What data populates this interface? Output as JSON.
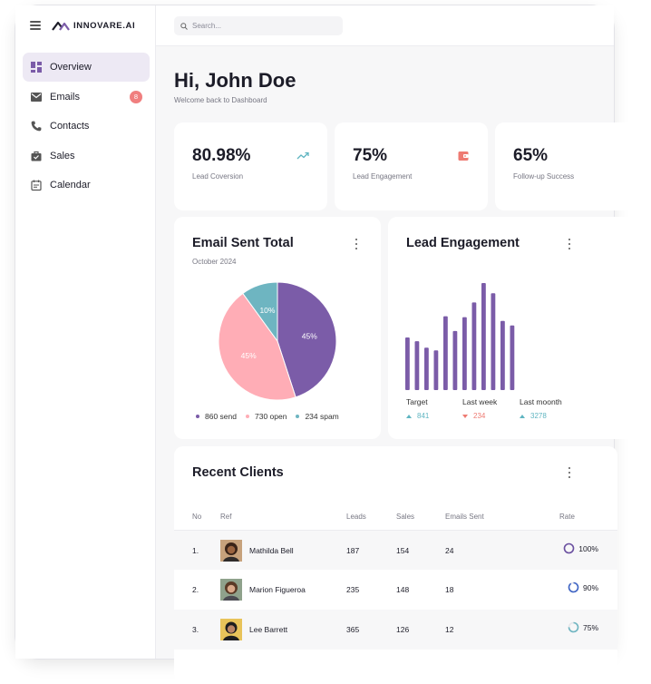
{
  "brand": {
    "name": "INNOVARE.AI",
    "logo_icon": "mountain-logo-icon"
  },
  "sidebar": {
    "items": [
      {
        "label": "Overview",
        "icon": "dashboard-grid-icon",
        "active": true
      },
      {
        "label": "Emails",
        "icon": "mail-icon",
        "badge": "8"
      },
      {
        "label": "Contacts",
        "icon": "phone-icon"
      },
      {
        "label": "Sales",
        "icon": "shopping-bag-icon"
      },
      {
        "label": "Calendar",
        "icon": "calendar-icon"
      }
    ]
  },
  "search": {
    "placeholder": "Search..."
  },
  "header": {
    "greeting": "Hi, John Doe",
    "subtitle": "Welcome back to Dashboard"
  },
  "stats": [
    {
      "value": "80.98%",
      "label": "Lead Coversion",
      "icon": "trending-up-icon",
      "icon_color": "#5fb5c1"
    },
    {
      "value": "75%",
      "label": "Lead Engagement",
      "icon": "wallet-icon",
      "icon_color": "#ee7a72"
    },
    {
      "value": "65%",
      "label": "Follow-up Success",
      "icon": ""
    }
  ],
  "email_card": {
    "title": "Email Sent Total",
    "subtitle": "October 2024",
    "legend": [
      {
        "label": "860 send",
        "color": "#7b5ca8"
      },
      {
        "label": "730 open",
        "color": "#ffadb6"
      },
      {
        "label": "234 spam",
        "color": "#6eb5c1"
      }
    ]
  },
  "engagement_card": {
    "title": "Lead Engagement",
    "stats": [
      {
        "label": "Target",
        "value": "841",
        "trend": "up"
      },
      {
        "label": "Last week",
        "value": "234",
        "trend": "down"
      },
      {
        "label": "Last moonth",
        "value": "3278",
        "trend": "up"
      }
    ]
  },
  "clients": {
    "title": "Recent Clients",
    "columns": {
      "no": "No",
      "ref": "Ref",
      "leads": "Leads",
      "sales": "Sales",
      "emails": "Emails Sent",
      "rate": "Rate"
    },
    "rows": [
      {
        "no": "1.",
        "name": "Mathilda Bell",
        "leads": "187",
        "sales": "154",
        "emails": "24",
        "rate": "100%",
        "rate_value": 1.0
      },
      {
        "no": "2.",
        "name": "Marion Figueroa",
        "leads": "235",
        "sales": "148",
        "emails": "18",
        "rate": "90%",
        "rate_value": 0.9
      },
      {
        "no": "3.",
        "name": "Lee Barrett",
        "leads": "365",
        "sales": "126",
        "emails": "12",
        "rate": "75%",
        "rate_value": 0.75
      }
    ]
  },
  "chart_data": [
    {
      "type": "pie",
      "title": "Email Sent Total",
      "subtitle": "October 2024",
      "slices": [
        {
          "label": "45%",
          "value": 45,
          "color": "#7b5ca8"
        },
        {
          "label": "45%",
          "value": 45,
          "color": "#ffadb6"
        },
        {
          "label": "10%",
          "value": 10,
          "color": "#6eb5c1"
        }
      ]
    },
    {
      "type": "bar",
      "title": "Lead Engagement",
      "color": "#7b5ca8",
      "values": [
        57,
        53,
        46,
        43,
        80,
        64,
        79,
        95,
        116,
        105,
        75,
        70
      ],
      "grid": false
    }
  ]
}
